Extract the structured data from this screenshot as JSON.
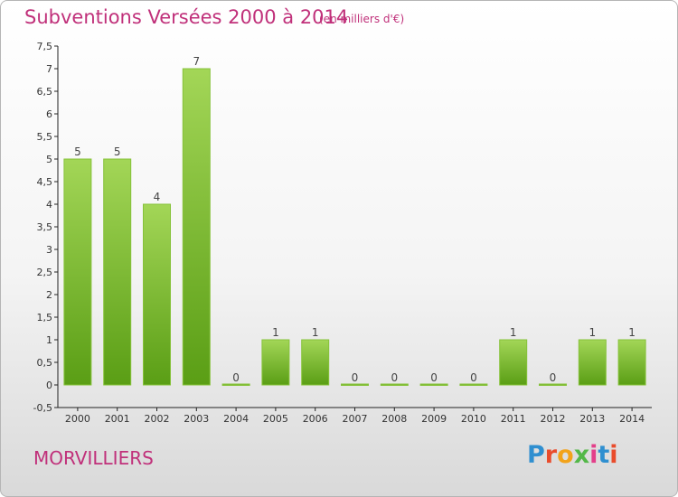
{
  "header": {
    "title": "Subventions Versées 2000 à 2014",
    "unit": "(en milliers d'€)"
  },
  "footer": {
    "commune": "MORVILLIERS",
    "logo": [
      "P",
      "r",
      "o",
      "x",
      "i",
      "t",
      "i"
    ]
  },
  "colors": {
    "title": "#c0307a",
    "bar_top": "#a3d657",
    "bar_bottom": "#5a9e15",
    "bar_edge": "#86c23a"
  },
  "chart_data": {
    "type": "bar",
    "title": "Subventions Versées 2000 à 2014",
    "categories": [
      "2000",
      "2001",
      "2002",
      "2003",
      "2004",
      "2005",
      "2006",
      "2007",
      "2008",
      "2009",
      "2010",
      "2011",
      "2012",
      "2013",
      "2014"
    ],
    "values": [
      5,
      5,
      4,
      7,
      0,
      1,
      1,
      0,
      0,
      0,
      0,
      1,
      0,
      1,
      1
    ],
    "data_labels": [
      "5",
      "5",
      "4",
      "7",
      "0",
      "1",
      "1",
      "0",
      "0",
      "0",
      "0",
      "1",
      "0",
      "1",
      "1"
    ],
    "ylim": [
      -0.5,
      7.5
    ],
    "yticks": [
      -0.5,
      0,
      0.5,
      1,
      1.5,
      2,
      2.5,
      3,
      3.5,
      4,
      4.5,
      5,
      5.5,
      6,
      6.5,
      7,
      7.5
    ],
    "ytick_labels": [
      "-0,5",
      "0",
      "0,5",
      "1",
      "1,5",
      "2",
      "2,5",
      "3",
      "3,5",
      "4",
      "4,5",
      "5",
      "5,5",
      "6",
      "6,5",
      "7",
      "7,5"
    ],
    "grid": false,
    "legend": "none"
  }
}
